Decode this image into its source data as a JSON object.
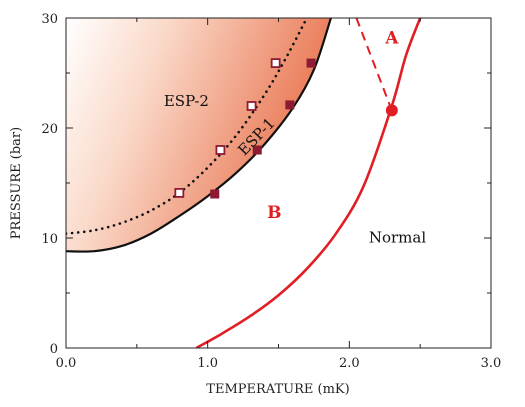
{
  "chart_data": {
    "type": "line",
    "title": "",
    "xlabel": "TEMPERATURE (mK)",
    "ylabel": "PRESSURE (bar)",
    "xlim": [
      0.0,
      3.0
    ],
    "ylim": [
      0,
      30
    ],
    "x_ticks": [
      "0.0",
      "1.0",
      "2.0",
      "3.0"
    ],
    "y_ticks": [
      "0",
      "10",
      "20",
      "30"
    ],
    "grid": false,
    "legend": "none",
    "colors": {
      "red_line": "#e01e24",
      "black_line": "#111111",
      "shade_dark": "#e8704a",
      "shade_light": "#ffffff",
      "marker_fill": "#8e1b33"
    },
    "series": [
      {
        "style": "solid-black",
        "x": [
          0.0,
          0.2,
          0.4,
          0.6,
          0.8,
          1.0,
          1.2,
          1.4,
          1.6,
          1.75,
          1.87
        ],
        "y": [
          8.8,
          8.8,
          9.3,
          10.4,
          12.0,
          13.8,
          15.9,
          18.5,
          21.8,
          25.3,
          30.0
        ]
      },
      {
        "style": "dotted-black",
        "x": [
          0.0,
          0.2,
          0.4,
          0.6,
          0.8,
          1.0,
          1.2,
          1.4,
          1.55,
          1.7
        ],
        "y": [
          10.4,
          10.7,
          11.4,
          12.5,
          14.1,
          16.4,
          19.3,
          23.0,
          26.3,
          30.0
        ]
      },
      {
        "style": "solid-red",
        "x": [
          0.92,
          1.1,
          1.3,
          1.5,
          1.7,
          1.9,
          2.1,
          2.3,
          2.4,
          2.5
        ],
        "y": [
          0.0,
          1.3,
          2.9,
          4.8,
          7.2,
          10.3,
          14.7,
          22.0,
          26.6,
          30.0
        ]
      },
      {
        "style": "dashed-red",
        "x": [
          2.05,
          2.3
        ],
        "y": [
          30.0,
          21.6
        ]
      }
    ],
    "markers": {
      "filled_squares": [
        {
          "x": 1.05,
          "y": 14.0
        },
        {
          "x": 1.35,
          "y": 18.0
        },
        {
          "x": 1.58,
          "y": 22.1
        },
        {
          "x": 1.73,
          "y": 25.9
        }
      ],
      "open_squares": [
        {
          "x": 0.8,
          "y": 14.1
        },
        {
          "x": 1.09,
          "y": 18.0
        },
        {
          "x": 1.31,
          "y": 22.0
        },
        {
          "x": 1.48,
          "y": 25.9
        }
      ],
      "filled_circle": {
        "x": 2.3,
        "y": 21.6
      }
    },
    "annotations": [
      {
        "id": "esp2",
        "text": "ESP-2",
        "x": 0.85,
        "y": 22.0
      },
      {
        "id": "esp1",
        "text": "ESP-1",
        "x": 1.37,
        "y": 18.9,
        "rotate": -46
      },
      {
        "id": "a",
        "text": "A",
        "x": 2.3,
        "y": 27.7
      },
      {
        "id": "b",
        "text": "B",
        "x": 1.47,
        "y": 11.8
      },
      {
        "id": "normal",
        "text": "Normal",
        "x": 2.34,
        "y": 9.6
      }
    ]
  }
}
